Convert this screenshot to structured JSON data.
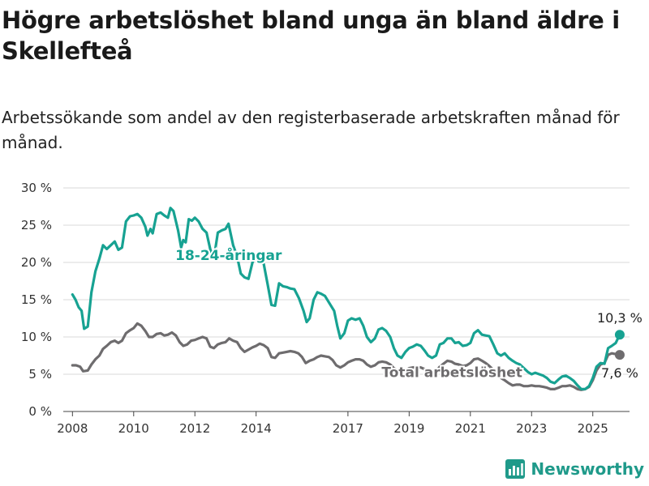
{
  "header": {
    "title": "Högre arbetslöshet bland unga än bland äldre i Skellefteå",
    "subtitle": "Arbetssökande som andel av den registerbaserade arbetskraften månad för månad."
  },
  "brand": {
    "name": "Newsworthy",
    "icon": "newsworthy-chart-logo-icon",
    "color": "#1f9a8a"
  },
  "chart_data": {
    "type": "line",
    "ylim": [
      0,
      30
    ],
    "xlim": [
      2007.7,
      2026.2
    ],
    "y_ticks": [
      "0 %",
      "5 %",
      "10 %",
      "15 %",
      "20 %",
      "25 %",
      "30 %"
    ],
    "x_ticks": [
      "2008",
      "2010",
      "2012",
      "2014",
      "2017",
      "2019",
      "2021",
      "2023",
      "2025"
    ],
    "grid": true,
    "series": [
      {
        "name": "18-24-åringar",
        "color": "#17a292",
        "end_label": "10,3 %",
        "points": [
          [
            2008.0,
            15.7
          ],
          [
            2008.1,
            15.0
          ],
          [
            2008.2,
            14.0
          ],
          [
            2008.3,
            13.5
          ],
          [
            2008.38,
            11.1
          ],
          [
            2008.5,
            11.4
          ],
          [
            2008.62,
            16.0
          ],
          [
            2008.75,
            18.8
          ],
          [
            2008.88,
            20.5
          ],
          [
            2009.0,
            22.3
          ],
          [
            2009.12,
            21.8
          ],
          [
            2009.25,
            22.3
          ],
          [
            2009.38,
            22.8
          ],
          [
            2009.5,
            21.7
          ],
          [
            2009.62,
            22.0
          ],
          [
            2009.75,
            25.5
          ],
          [
            2009.88,
            26.2
          ],
          [
            2010.0,
            26.3
          ],
          [
            2010.12,
            26.5
          ],
          [
            2010.25,
            26.0
          ],
          [
            2010.38,
            24.8
          ],
          [
            2010.45,
            23.6
          ],
          [
            2010.55,
            24.5
          ],
          [
            2010.62,
            23.9
          ],
          [
            2010.75,
            26.5
          ],
          [
            2010.88,
            26.7
          ],
          [
            2011.0,
            26.3
          ],
          [
            2011.12,
            26.0
          ],
          [
            2011.2,
            27.3
          ],
          [
            2011.3,
            26.9
          ],
          [
            2011.45,
            24.3
          ],
          [
            2011.55,
            22.0
          ],
          [
            2011.62,
            23.0
          ],
          [
            2011.7,
            22.7
          ],
          [
            2011.8,
            25.8
          ],
          [
            2011.9,
            25.6
          ],
          [
            2012.0,
            26.0
          ],
          [
            2012.12,
            25.5
          ],
          [
            2012.25,
            24.5
          ],
          [
            2012.38,
            24.0
          ],
          [
            2012.5,
            21.8
          ],
          [
            2012.62,
            20.5
          ],
          [
            2012.75,
            24.0
          ],
          [
            2012.88,
            24.3
          ],
          [
            2013.0,
            24.5
          ],
          [
            2013.1,
            25.2
          ],
          [
            2013.25,
            22.3
          ],
          [
            2013.38,
            20.8
          ],
          [
            2013.5,
            18.5
          ],
          [
            2013.62,
            18.0
          ],
          [
            2013.75,
            17.8
          ],
          [
            2013.88,
            20.0
          ],
          [
            2014.0,
            21.0
          ],
          [
            2014.12,
            20.3
          ],
          [
            2014.25,
            19.8
          ],
          [
            2014.38,
            17.0
          ],
          [
            2014.5,
            14.3
          ],
          [
            2014.62,
            14.2
          ],
          [
            2014.75,
            17.2
          ],
          [
            2014.88,
            16.8
          ],
          [
            2015.0,
            16.7
          ],
          [
            2015.12,
            16.5
          ],
          [
            2015.25,
            16.4
          ],
          [
            2015.4,
            15.2
          ],
          [
            2015.55,
            13.5
          ],
          [
            2015.65,
            12.0
          ],
          [
            2015.75,
            12.5
          ],
          [
            2015.88,
            15.0
          ],
          [
            2016.0,
            16.0
          ],
          [
            2016.12,
            15.8
          ],
          [
            2016.25,
            15.5
          ],
          [
            2016.4,
            14.5
          ],
          [
            2016.55,
            13.5
          ],
          [
            2016.65,
            11.5
          ],
          [
            2016.75,
            9.8
          ],
          [
            2016.88,
            10.5
          ],
          [
            2017.0,
            12.2
          ],
          [
            2017.12,
            12.5
          ],
          [
            2017.25,
            12.3
          ],
          [
            2017.38,
            12.5
          ],
          [
            2017.5,
            11.5
          ],
          [
            2017.62,
            10.0
          ],
          [
            2017.75,
            9.3
          ],
          [
            2017.88,
            9.8
          ],
          [
            2018.0,
            11.0
          ],
          [
            2018.12,
            11.2
          ],
          [
            2018.25,
            10.8
          ],
          [
            2018.38,
            10.0
          ],
          [
            2018.5,
            8.5
          ],
          [
            2018.62,
            7.5
          ],
          [
            2018.75,
            7.2
          ],
          [
            2018.88,
            8.0
          ],
          [
            2019.0,
            8.5
          ],
          [
            2019.12,
            8.7
          ],
          [
            2019.25,
            9.0
          ],
          [
            2019.38,
            8.8
          ],
          [
            2019.5,
            8.2
          ],
          [
            2019.62,
            7.5
          ],
          [
            2019.75,
            7.2
          ],
          [
            2019.88,
            7.5
          ],
          [
            2020.0,
            9.0
          ],
          [
            2020.12,
            9.2
          ],
          [
            2020.25,
            9.8
          ],
          [
            2020.38,
            9.8
          ],
          [
            2020.5,
            9.2
          ],
          [
            2020.62,
            9.3
          ],
          [
            2020.75,
            8.8
          ],
          [
            2020.88,
            8.9
          ],
          [
            2021.0,
            9.2
          ],
          [
            2021.12,
            10.5
          ],
          [
            2021.25,
            10.9
          ],
          [
            2021.38,
            10.3
          ],
          [
            2021.5,
            10.2
          ],
          [
            2021.62,
            10.1
          ],
          [
            2021.75,
            9.0
          ],
          [
            2021.88,
            7.8
          ],
          [
            2022.0,
            7.5
          ],
          [
            2022.12,
            7.8
          ],
          [
            2022.25,
            7.2
          ],
          [
            2022.38,
            6.8
          ],
          [
            2022.5,
            6.5
          ],
          [
            2022.62,
            6.3
          ],
          [
            2022.75,
            5.8
          ],
          [
            2022.88,
            5.3
          ],
          [
            2023.0,
            5.0
          ],
          [
            2023.12,
            5.2
          ],
          [
            2023.25,
            5.0
          ],
          [
            2023.38,
            4.8
          ],
          [
            2023.5,
            4.5
          ],
          [
            2023.62,
            4.0
          ],
          [
            2023.75,
            3.8
          ],
          [
            2023.88,
            4.3
          ],
          [
            2024.0,
            4.7
          ],
          [
            2024.12,
            4.8
          ],
          [
            2024.25,
            4.5
          ],
          [
            2024.38,
            4.1
          ],
          [
            2024.5,
            3.5
          ],
          [
            2024.62,
            3.0
          ],
          [
            2024.75,
            3.0
          ],
          [
            2024.88,
            3.4
          ],
          [
            2025.0,
            4.5
          ],
          [
            2025.12,
            6.0
          ],
          [
            2025.25,
            6.5
          ],
          [
            2025.38,
            6.4
          ],
          [
            2025.5,
            8.5
          ],
          [
            2025.62,
            8.8
          ],
          [
            2025.75,
            9.2
          ],
          [
            2025.88,
            10.3
          ]
        ]
      },
      {
        "name": "Total arbetslöshet",
        "color": "#6e6c6e",
        "end_label": "7,6 %",
        "points": [
          [
            2008.0,
            6.2
          ],
          [
            2008.12,
            6.2
          ],
          [
            2008.25,
            6.0
          ],
          [
            2008.35,
            5.4
          ],
          [
            2008.5,
            5.5
          ],
          [
            2008.62,
            6.3
          ],
          [
            2008.75,
            7.0
          ],
          [
            2008.88,
            7.5
          ],
          [
            2009.0,
            8.4
          ],
          [
            2009.12,
            8.8
          ],
          [
            2009.25,
            9.3
          ],
          [
            2009.38,
            9.5
          ],
          [
            2009.5,
            9.2
          ],
          [
            2009.62,
            9.5
          ],
          [
            2009.75,
            10.5
          ],
          [
            2009.88,
            10.9
          ],
          [
            2010.0,
            11.2
          ],
          [
            2010.12,
            11.8
          ],
          [
            2010.25,
            11.5
          ],
          [
            2010.38,
            10.8
          ],
          [
            2010.5,
            10.0
          ],
          [
            2010.62,
            10.0
          ],
          [
            2010.75,
            10.4
          ],
          [
            2010.88,
            10.5
          ],
          [
            2011.0,
            10.2
          ],
          [
            2011.12,
            10.3
          ],
          [
            2011.25,
            10.6
          ],
          [
            2011.38,
            10.2
          ],
          [
            2011.5,
            9.3
          ],
          [
            2011.62,
            8.8
          ],
          [
            2011.75,
            9.0
          ],
          [
            2011.88,
            9.5
          ],
          [
            2012.0,
            9.6
          ],
          [
            2012.12,
            9.8
          ],
          [
            2012.25,
            10.0
          ],
          [
            2012.38,
            9.8
          ],
          [
            2012.5,
            8.7
          ],
          [
            2012.62,
            8.5
          ],
          [
            2012.75,
            9.0
          ],
          [
            2012.88,
            9.2
          ],
          [
            2013.0,
            9.3
          ],
          [
            2013.12,
            9.8
          ],
          [
            2013.25,
            9.5
          ],
          [
            2013.38,
            9.3
          ],
          [
            2013.5,
            8.5
          ],
          [
            2013.62,
            8.0
          ],
          [
            2013.75,
            8.3
          ],
          [
            2013.88,
            8.6
          ],
          [
            2014.0,
            8.8
          ],
          [
            2014.12,
            9.1
          ],
          [
            2014.25,
            8.9
          ],
          [
            2014.38,
            8.5
          ],
          [
            2014.5,
            7.3
          ],
          [
            2014.62,
            7.2
          ],
          [
            2014.75,
            7.8
          ],
          [
            2014.88,
            7.9
          ],
          [
            2015.0,
            8.0
          ],
          [
            2015.12,
            8.1
          ],
          [
            2015.25,
            8.0
          ],
          [
            2015.38,
            7.8
          ],
          [
            2015.5,
            7.3
          ],
          [
            2015.62,
            6.5
          ],
          [
            2015.75,
            6.8
          ],
          [
            2015.88,
            7.0
          ],
          [
            2016.0,
            7.3
          ],
          [
            2016.12,
            7.5
          ],
          [
            2016.25,
            7.4
          ],
          [
            2016.38,
            7.3
          ],
          [
            2016.5,
            6.9
          ],
          [
            2016.62,
            6.2
          ],
          [
            2016.75,
            5.9
          ],
          [
            2016.88,
            6.2
          ],
          [
            2017.0,
            6.6
          ],
          [
            2017.12,
            6.8
          ],
          [
            2017.25,
            7.0
          ],
          [
            2017.38,
            7.0
          ],
          [
            2017.5,
            6.8
          ],
          [
            2017.62,
            6.3
          ],
          [
            2017.75,
            6.0
          ],
          [
            2017.88,
            6.2
          ],
          [
            2018.0,
            6.6
          ],
          [
            2018.12,
            6.7
          ],
          [
            2018.25,
            6.6
          ],
          [
            2018.38,
            6.3
          ],
          [
            2018.5,
            5.8
          ],
          [
            2018.62,
            5.5
          ],
          [
            2018.75,
            5.4
          ],
          [
            2018.88,
            5.5
          ],
          [
            2019.0,
            5.8
          ],
          [
            2019.12,
            5.9
          ],
          [
            2019.25,
            6.0
          ],
          [
            2019.38,
            5.9
          ],
          [
            2019.5,
            5.7
          ],
          [
            2019.62,
            5.3
          ],
          [
            2019.75,
            5.2
          ],
          [
            2019.88,
            5.4
          ],
          [
            2020.0,
            6.0
          ],
          [
            2020.12,
            6.4
          ],
          [
            2020.25,
            6.8
          ],
          [
            2020.38,
            6.7
          ],
          [
            2020.5,
            6.4
          ],
          [
            2020.62,
            6.3
          ],
          [
            2020.75,
            6.1
          ],
          [
            2020.88,
            6.2
          ],
          [
            2021.0,
            6.5
          ],
          [
            2021.12,
            7.0
          ],
          [
            2021.25,
            7.1
          ],
          [
            2021.38,
            6.8
          ],
          [
            2021.5,
            6.5
          ],
          [
            2021.62,
            6.1
          ],
          [
            2021.75,
            5.6
          ],
          [
            2021.88,
            5.0
          ],
          [
            2022.0,
            4.5
          ],
          [
            2022.12,
            4.2
          ],
          [
            2022.25,
            3.8
          ],
          [
            2022.38,
            3.5
          ],
          [
            2022.5,
            3.6
          ],
          [
            2022.62,
            3.6
          ],
          [
            2022.75,
            3.4
          ],
          [
            2022.88,
            3.4
          ],
          [
            2023.0,
            3.5
          ],
          [
            2023.12,
            3.4
          ],
          [
            2023.25,
            3.4
          ],
          [
            2023.38,
            3.3
          ],
          [
            2023.5,
            3.2
          ],
          [
            2023.62,
            3.0
          ],
          [
            2023.75,
            3.0
          ],
          [
            2023.88,
            3.2
          ],
          [
            2024.0,
            3.4
          ],
          [
            2024.12,
            3.4
          ],
          [
            2024.25,
            3.5
          ],
          [
            2024.38,
            3.3
          ],
          [
            2024.5,
            3.0
          ],
          [
            2024.62,
            2.9
          ],
          [
            2024.75,
            3.0
          ],
          [
            2024.88,
            3.3
          ],
          [
            2025.0,
            4.2
          ],
          [
            2025.12,
            5.5
          ],
          [
            2025.25,
            6.3
          ],
          [
            2025.38,
            6.5
          ],
          [
            2025.5,
            7.6
          ],
          [
            2025.62,
            7.8
          ],
          [
            2025.75,
            7.7
          ],
          [
            2025.88,
            7.6
          ]
        ]
      }
    ]
  }
}
